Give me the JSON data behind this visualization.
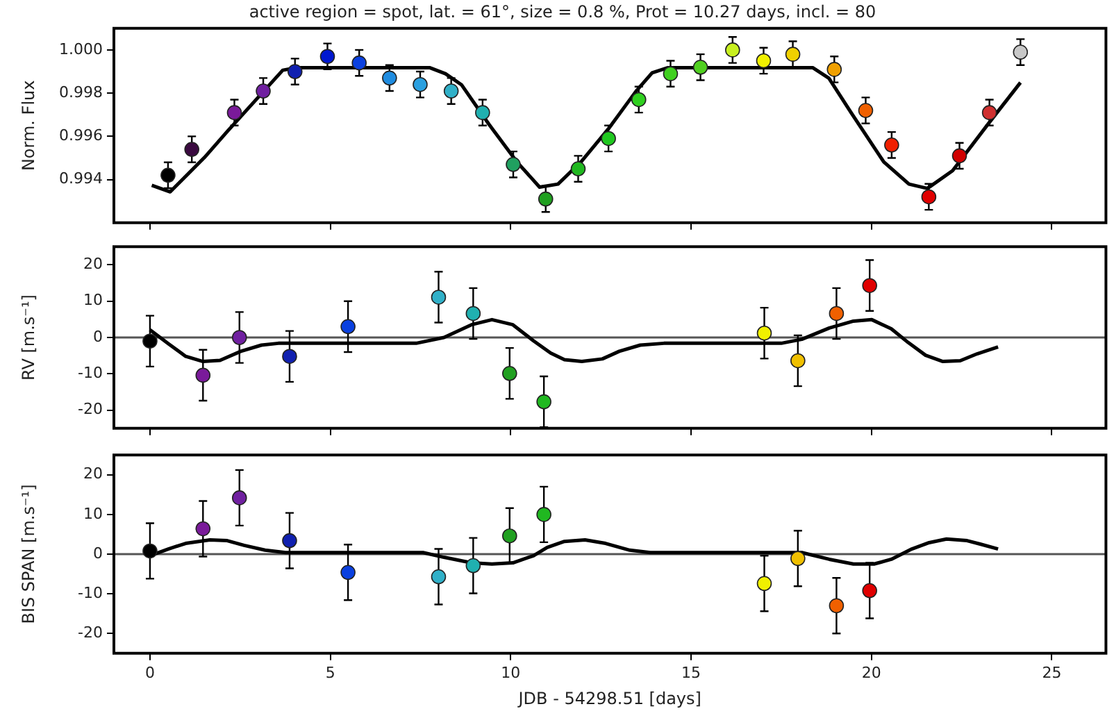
{
  "chart_data": [
    {
      "type": "scatter",
      "title": "active region = spot, lat. = 61°, size = 0.8 %, Prot = 10.27 days, incl. = 80",
      "ylabel": "Norm. Flux",
      "xlim": [
        -1,
        26.5
      ],
      "xticks": [
        0,
        5,
        10,
        15,
        20,
        25
      ],
      "ylim": [
        0.992,
        1.001
      ],
      "yticks": [
        0.994,
        0.996,
        0.998,
        {
          "value": 1,
          "label": "1.000"
        }
      ],
      "tick_labels": "y",
      "grid": false,
      "legend": false,
      "marker": "circle",
      "series": [
        {
          "x": [
            0.5,
            1.16,
            2.34,
            3.14,
            4.02,
            4.92,
            5.8,
            6.64,
            7.49,
            8.35,
            9.22,
            10.07,
            10.97,
            11.87,
            12.71,
            13.55,
            14.43,
            15.26,
            16.15,
            17.01,
            17.82,
            18.97,
            19.84,
            20.56,
            21.59,
            22.44,
            23.27,
            24.13
          ],
          "values": [
            0.9942,
            0.9954,
            0.9971,
            0.9981,
            0.999,
            0.9997,
            0.9994,
            0.9987,
            0.9984,
            0.9981,
            0.9971,
            0.9947,
            0.9931,
            0.9945,
            0.9959,
            0.9977,
            0.9989,
            0.9992,
            1.0,
            0.9995,
            0.9998,
            0.9991,
            0.9972,
            0.9956,
            0.9932,
            0.9951,
            0.9971,
            0.9999
          ],
          "errors": [
            0.0006,
            0.0006,
            0.0006,
            0.0006,
            0.0006,
            0.0006,
            0.0006,
            0.0006,
            0.0006,
            0.0006,
            0.0006,
            0.0006,
            0.0006,
            0.0006,
            0.0006,
            0.0006,
            0.0006,
            0.0006,
            0.0006,
            0.0006,
            0.0006,
            0.0006,
            0.0006,
            0.0006,
            0.0006,
            0.0006,
            0.0006,
            0.0006
          ],
          "colors": [
            "#000000",
            "#3a0a40",
            "#7a1a9a",
            "#7020a0",
            "#1020b0",
            "#0018d0",
            "#0a40e0",
            "#1f8ce0",
            "#2aa0e0",
            "#30b0c8",
            "#20b0b0",
            "#20a060",
            "#20a020",
            "#20b820",
            "#20c820",
            "#30d020",
            "#40d020",
            "#50d020",
            "#c8f020",
            "#f0f000",
            "#f0d000",
            "#f0a000",
            "#f06000",
            "#f02000",
            "#e00000",
            "#d00000",
            "#d03030",
            "#c8c8c8"
          ]
        },
        {
          "type": "line",
          "marker": "none",
          "color": "#000000",
          "x": [
            0.05,
            0.56,
            1.51,
            2.15,
            3.04,
            3.68,
            4.06,
            7.75,
            8.19,
            8.64,
            9.4,
            10.17,
            10.8,
            11.31,
            11.95,
            12.71,
            13.47,
            13.92,
            14.36,
            18.37,
            18.82,
            19.45,
            20.34,
            21.04,
            21.55,
            22.25,
            23.27,
            24.13
          ],
          "values": [
            0.99373,
            0.99343,
            0.99502,
            0.99624,
            0.99788,
            0.99906,
            0.99918,
            0.99918,
            0.9989,
            0.99838,
            0.99655,
            0.99482,
            0.99365,
            0.99379,
            0.99482,
            0.99635,
            0.99808,
            0.99894,
            0.99918,
            0.99918,
            0.99869,
            0.99706,
            0.99482,
            0.99379,
            0.99359,
            0.99441,
            0.99665,
            0.99849
          ]
        }
      ]
    },
    {
      "type": "scatter",
      "ylabel": "RV [m.s⁻¹]",
      "xlim": [
        -1,
        26.5
      ],
      "xticks": [
        0,
        5,
        10,
        15,
        20,
        25
      ],
      "ylim": [
        -25,
        25
      ],
      "yticks": [
        -20,
        -10,
        0,
        10,
        20
      ],
      "tick_labels": "y",
      "grid": false,
      "legend": false,
      "marker": "circle",
      "ref_lines": [
        {
          "axis": "y",
          "value": 0,
          "color": "#555555"
        }
      ],
      "series": [
        {
          "x": [
            0,
            1.47,
            2.48,
            3.87,
            5.49,
            8.0,
            8.96,
            9.97,
            10.92,
            17.03,
            17.96,
            19.03,
            19.95
          ],
          "values": [
            -1,
            -10.4,
            0,
            -5.2,
            3,
            11.1,
            6.6,
            -9.9,
            -17.7,
            1.2,
            -6.4,
            6.6,
            14.3
          ],
          "errors": [
            7,
            7,
            7,
            7,
            7,
            7,
            7,
            7,
            7,
            7,
            7,
            7,
            7
          ],
          "colors": [
            "#000000",
            "#7a1a9a",
            "#7020a0",
            "#1020b0",
            "#0a40e0",
            "#30b0c8",
            "#20b0b0",
            "#20a020",
            "#20b820",
            "#f0f000",
            "#f0c000",
            "#f06000",
            "#e00000"
          ]
        },
        {
          "type": "line",
          "marker": "none",
          "color": "#000000",
          "x": [
            0,
            0.51,
            0.99,
            1.47,
            1.94,
            2.52,
            3.09,
            3.56,
            7.38,
            8.15,
            8.91,
            9.48,
            10.06,
            10.63,
            11.11,
            11.49,
            11.97,
            12.54,
            13.01,
            13.59,
            14.25,
            17.5,
            18.07,
            18.83,
            19.5,
            20.01,
            20.55,
            21.02,
            21.5,
            21.98,
            22.46,
            22.93,
            23.51
          ],
          "values": [
            2.1,
            -1.7,
            -5.2,
            -6.6,
            -6.3,
            -3.8,
            -2.1,
            -1.6,
            -1.6,
            0,
            3.5,
            4.9,
            3.5,
            -0.9,
            -4.3,
            -6.1,
            -6.6,
            -5.9,
            -3.8,
            -2.1,
            -1.6,
            -1.6,
            -0.5,
            2.6,
            4.5,
            4.9,
            2.4,
            -1.4,
            -4.9,
            -6.6,
            -6.4,
            -4.5,
            -2.6
          ]
        }
      ]
    },
    {
      "type": "scatter",
      "ylabel": "BIS SPAN [m.s⁻¹]",
      "xlabel": "JDB - 54298.51 [days]",
      "xlim": [
        -1,
        26.5
      ],
      "xticks": [
        0,
        5,
        10,
        15,
        20,
        25
      ],
      "ylim": [
        -25,
        25
      ],
      "yticks": [
        -20,
        -10,
        0,
        10,
        20
      ],
      "grid": false,
      "legend": false,
      "marker": "circle",
      "ref_lines": [
        {
          "axis": "y",
          "value": 0,
          "color": "#555555"
        }
      ],
      "series": [
        {
          "x": [
            0,
            1.47,
            2.48,
            3.87,
            5.49,
            8.0,
            8.96,
            9.97,
            10.92,
            17.03,
            17.96,
            19.03,
            19.95
          ],
          "values": [
            0.8,
            6.4,
            14.2,
            3.4,
            -4.6,
            -5.7,
            -2.9,
            4.6,
            10,
            -7.4,
            -1.1,
            -13,
            -9.2
          ],
          "errors": [
            7,
            7,
            7,
            7,
            7,
            7,
            7,
            7,
            7,
            7,
            7,
            7,
            7
          ],
          "colors": [
            "#000000",
            "#7a1a9a",
            "#7020a0",
            "#1020b0",
            "#0a40e0",
            "#30b0c8",
            "#20b0b0",
            "#20a020",
            "#20b820",
            "#f0f000",
            "#f0c000",
            "#f06000",
            "#e00000"
          ]
        },
        {
          "type": "line",
          "marker": "none",
          "color": "#000000",
          "x": [
            0,
            0.51,
            0.99,
            1.66,
            2.14,
            2.61,
            3.19,
            3.76,
            7.57,
            8.15,
            8.91,
            9.48,
            10.06,
            10.63,
            11.01,
            11.49,
            12.06,
            12.63,
            13.3,
            13.87,
            18.07,
            18.83,
            19.5,
            20.07,
            20.55,
            21.12,
            21.6,
            22.08,
            22.65,
            23.03,
            23.51
          ],
          "values": [
            -0.4,
            1.3,
            2.7,
            3.6,
            3.4,
            2.2,
            1,
            0.4,
            0.4,
            -0.8,
            -2.2,
            -2.5,
            -2.2,
            -0.4,
            1.7,
            3.2,
            3.6,
            2.7,
            1,
            0.4,
            0.4,
            -1.3,
            -2.5,
            -2.5,
            -1.3,
            1.3,
            2.9,
            3.8,
            3.4,
            2.5,
            1.3
          ]
        }
      ]
    }
  ]
}
